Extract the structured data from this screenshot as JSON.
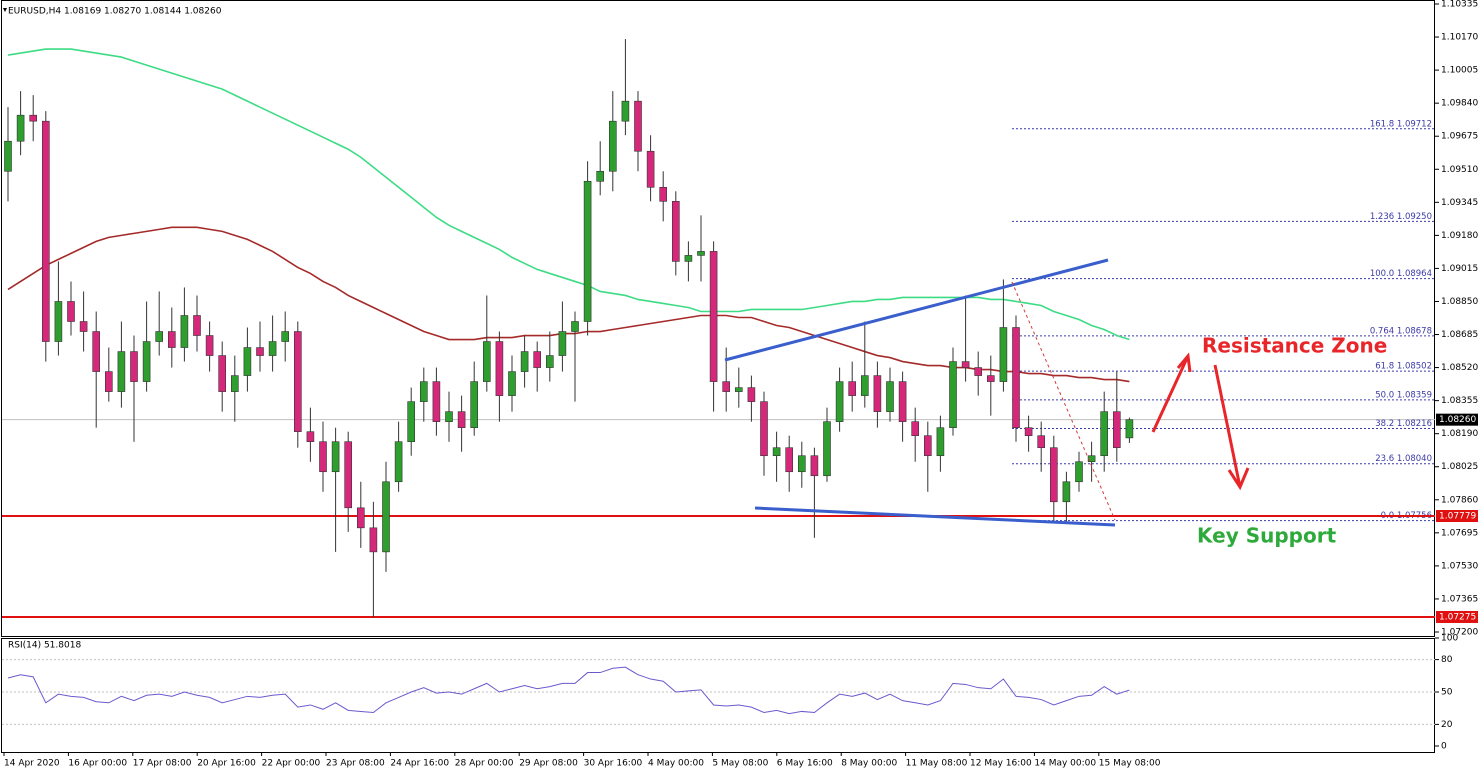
{
  "chart_data": {
    "type": "candlestick",
    "header": "EURUSD,H4  1.08169 1.08270 1.08144 1.08260",
    "bull_color": "#2e9e2e",
    "bear_color": "#d6287a",
    "ylim": [
      1.072,
      1.10335
    ],
    "yticks": [
      1.10335,
      {
        "value": 1.1017,
        "label": "1.10170"
      },
      1.10005,
      {
        "value": 1.0984,
        "label": "1.09840"
      },
      1.09675,
      {
        "value": 1.0951,
        "label": "1.09510"
      },
      1.09345,
      {
        "value": 1.0918,
        "label": "1.09180"
      },
      1.09015,
      {
        "value": 1.0885,
        "label": "1.08850"
      },
      1.08685,
      {
        "value": 1.0852,
        "label": "1.08520"
      },
      1.08355,
      {
        "value": 1.0819,
        "label": "1.08190"
      },
      1.08025,
      {
        "value": 1.0786,
        "label": "1.07860"
      },
      1.07695,
      {
        "value": 1.0753,
        "label": "1.07530"
      },
      1.07365,
      {
        "value": 1.072,
        "label": "1.07200"
      }
    ],
    "x_labels": [
      "14 Apr 2020",
      "16 Apr 00:00",
      "17 Apr 08:00",
      "20 Apr 16:00",
      "22 Apr 00:00",
      "23 Apr 08:00",
      "24 Apr 16:00",
      "28 Apr 00:00",
      "29 Apr 08:00",
      "30 Apr 16:00",
      "4 May 00:00",
      "5 May 08:00",
      "6 May 16:00",
      "8 May 00:00",
      "11 May 08:00",
      "12 May 16:00",
      "14 May 00:00",
      "15 May 08:00"
    ],
    "ohlc": [
      [
        1.095,
        1.0982,
        1.0935,
        1.0965
      ],
      [
        1.0965,
        1.099,
        1.0958,
        1.0978
      ],
      [
        1.0978,
        1.0988,
        1.0965,
        1.0975
      ],
      [
        1.0975,
        1.098,
        1.0855,
        1.0865
      ],
      [
        1.0865,
        1.0905,
        1.0858,
        1.0885
      ],
      [
        1.0885,
        1.0895,
        1.0868,
        1.0875
      ],
      [
        1.0875,
        1.089,
        1.086,
        1.087
      ],
      [
        1.087,
        1.088,
        1.0822,
        1.085
      ],
      [
        1.085,
        1.0862,
        1.0835,
        1.084
      ],
      [
        1.084,
        1.0875,
        1.0832,
        1.086
      ],
      [
        1.086,
        1.0868,
        1.0815,
        1.0845
      ],
      [
        1.0845,
        1.0885,
        1.084,
        1.0865
      ],
      [
        1.0865,
        1.089,
        1.0858,
        1.087
      ],
      [
        1.087,
        1.0882,
        1.0852,
        1.0862
      ],
      [
        1.0862,
        1.0892,
        1.0855,
        1.0878
      ],
      [
        1.0878,
        1.0888,
        1.086,
        1.0868
      ],
      [
        1.0868,
        1.0875,
        1.085,
        1.0858
      ],
      [
        1.0858,
        1.0865,
        1.083,
        1.084
      ],
      [
        1.084,
        1.0858,
        1.0825,
        1.0848
      ],
      [
        1.0848,
        1.0872,
        1.084,
        1.0862
      ],
      [
        1.0862,
        1.0875,
        1.085,
        1.0858
      ],
      [
        1.0858,
        1.0878,
        1.085,
        1.0865
      ],
      [
        1.0865,
        1.088,
        1.0855,
        1.087
      ],
      [
        1.087,
        1.0875,
        1.0812,
        1.082
      ],
      [
        1.082,
        1.0832,
        1.0805,
        1.0815
      ],
      [
        1.0815,
        1.0825,
        1.079,
        1.08
      ],
      [
        1.08,
        1.0822,
        1.076,
        1.0815
      ],
      [
        1.0815,
        1.082,
        1.077,
        1.0782
      ],
      [
        1.0782,
        1.0795,
        1.0762,
        1.0772
      ],
      [
        1.0772,
        1.0785,
        1.07275,
        1.076
      ],
      [
        1.076,
        1.0805,
        1.075,
        1.0795
      ],
      [
        1.0795,
        1.0825,
        1.079,
        1.0815
      ],
      [
        1.0815,
        1.0842,
        1.0808,
        1.0835
      ],
      [
        1.0835,
        1.0852,
        1.0825,
        1.0845
      ],
      [
        1.0845,
        1.0852,
        1.0818,
        1.0825
      ],
      [
        1.0825,
        1.084,
        1.0815,
        1.083
      ],
      [
        1.083,
        1.0838,
        1.081,
        1.0822
      ],
      [
        1.0822,
        1.0855,
        1.0818,
        1.0845
      ],
      [
        1.0845,
        1.0888,
        1.084,
        1.0865
      ],
      [
        1.0865,
        1.087,
        1.0825,
        1.0838
      ],
      [
        1.0838,
        1.0858,
        1.083,
        1.085
      ],
      [
        1.085,
        1.0868,
        1.0842,
        1.086
      ],
      [
        1.086,
        1.0865,
        1.084,
        1.0852
      ],
      [
        1.0852,
        1.087,
        1.0845,
        1.0858
      ],
      [
        1.0858,
        1.0885,
        1.085,
        1.087
      ],
      [
        1.087,
        1.088,
        1.0835,
        1.0875
      ],
      [
        1.0875,
        1.0955,
        1.0868,
        1.0945
      ],
      [
        1.0945,
        1.0965,
        1.0938,
        1.095
      ],
      [
        1.095,
        1.099,
        1.094,
        1.0975
      ],
      [
        1.0975,
        1.1016,
        1.0968,
        1.0985
      ],
      [
        1.0985,
        1.099,
        1.095,
        1.096
      ],
      [
        1.096,
        1.0968,
        1.0935,
        1.0942
      ],
      [
        1.0942,
        1.095,
        1.0925,
        1.0935
      ],
      [
        1.0935,
        1.094,
        1.0898,
        1.0905
      ],
      [
        1.0905,
        1.0915,
        1.0895,
        1.0908
      ],
      [
        1.0908,
        1.0928,
        1.0895,
        1.091
      ],
      [
        1.091,
        1.0915,
        1.083,
        1.0845
      ],
      [
        1.0845,
        1.0862,
        1.083,
        1.084
      ],
      [
        1.084,
        1.0852,
        1.0832,
        1.0842
      ],
      [
        1.0842,
        1.0848,
        1.0825,
        1.0835
      ],
      [
        1.0835,
        1.084,
        1.0798,
        1.0808
      ],
      [
        1.0808,
        1.082,
        1.0795,
        1.0812
      ],
      [
        1.0812,
        1.0818,
        1.079,
        1.08
      ],
      [
        1.08,
        1.0815,
        1.0792,
        1.0808
      ],
      [
        1.0808,
        1.0812,
        1.0767,
        1.0798
      ],
      [
        1.0798,
        1.0832,
        1.0795,
        1.0825
      ],
      [
        1.0825,
        1.0852,
        1.082,
        1.0845
      ],
      [
        1.0845,
        1.0855,
        1.083,
        1.0838
      ],
      [
        1.0838,
        1.0875,
        1.0832,
        1.0848
      ],
      [
        1.0848,
        1.0855,
        1.0822,
        1.083
      ],
      [
        1.083,
        1.0852,
        1.0825,
        1.0845
      ],
      [
        1.0845,
        1.085,
        1.0815,
        1.0825
      ],
      [
        1.0825,
        1.0832,
        1.0805,
        1.0818
      ],
      [
        1.0818,
        1.0825,
        1.079,
        1.0808
      ],
      [
        1.0808,
        1.0828,
        1.08,
        1.0822
      ],
      [
        1.0822,
        1.0862,
        1.0818,
        1.0855
      ],
      [
        1.0855,
        1.0888,
        1.0845,
        1.0852
      ],
      [
        1.0852,
        1.086,
        1.0838,
        1.0848
      ],
      [
        1.0848,
        1.0858,
        1.0828,
        1.0845
      ],
      [
        1.0845,
        1.0896,
        1.084,
        1.0872
      ],
      [
        1.0872,
        1.0878,
        1.0815,
        1.0822
      ],
      [
        1.0822,
        1.0828,
        1.081,
        1.0818
      ],
      [
        1.0818,
        1.0825,
        1.08,
        1.0812
      ],
      [
        1.0812,
        1.0818,
        1.0775,
        1.0785
      ],
      [
        1.0785,
        1.08,
        1.0775,
        1.0795
      ],
      [
        1.0795,
        1.081,
        1.079,
        1.0805
      ],
      [
        1.0805,
        1.0815,
        1.0795,
        1.0808
      ],
      [
        1.0808,
        1.084,
        1.08,
        1.083
      ],
      [
        1.083,
        1.085,
        1.0805,
        1.0812
      ],
      [
        1.08169,
        1.0827,
        1.08144,
        1.0826
      ]
    ],
    "moving_averages": [
      {
        "color": "#3ddc84",
        "values": [
          1.1008,
          1.1009,
          1.101,
          1.1011,
          1.1011,
          1.1011,
          1.101,
          1.1009,
          1.1008,
          1.1007,
          1.1005,
          1.1003,
          1.1001,
          1.0999,
          1.0997,
          1.0995,
          1.0993,
          1.0991,
          1.0988,
          1.0985,
          1.0982,
          1.0979,
          1.0976,
          1.0973,
          1.097,
          1.0967,
          1.0964,
          1.0961,
          1.0957,
          1.0952,
          1.0947,
          1.0942,
          1.0937,
          1.0932,
          1.0927,
          1.0923,
          1.092,
          1.0917,
          1.0914,
          1.0911,
          1.0907,
          1.0904,
          1.0901,
          1.0899,
          1.0897,
          1.0895,
          1.0893,
          1.089,
          1.0889,
          1.0888,
          1.0886,
          1.0885,
          1.0884,
          1.0883,
          1.0882,
          1.088,
          1.088,
          1.088,
          1.088,
          1.0881,
          1.0881,
          1.0881,
          1.0881,
          1.0881,
          1.0882,
          1.0883,
          1.0884,
          1.0885,
          1.0885,
          1.0886,
          1.0886,
          1.0887,
          1.0887,
          1.0887,
          1.0887,
          1.0887,
          1.0887,
          1.0887,
          1.0886,
          1.0886,
          1.0885,
          1.0884,
          1.0883,
          1.088,
          1.0878,
          1.0876,
          1.0873,
          1.0871,
          1.0868,
          1.0866
        ]
      },
      {
        "color": "#a52a2a",
        "values": [
          1.0891,
          1.0895,
          1.0899,
          1.0903,
          1.0906,
          1.0909,
          1.0912,
          1.0915,
          1.0917,
          1.0918,
          1.0919,
          1.092,
          1.0921,
          1.0922,
          1.0922,
          1.0922,
          1.0921,
          1.092,
          1.0918,
          1.0916,
          1.0913,
          1.091,
          1.0906,
          1.0902,
          1.0899,
          1.0895,
          1.0892,
          1.0888,
          1.0885,
          1.0882,
          1.0879,
          1.0876,
          1.0873,
          1.087,
          1.0868,
          1.0866,
          1.0866,
          1.0866,
          1.0867,
          1.0867,
          1.0867,
          1.0868,
          1.0868,
          1.0868,
          1.0869,
          1.0869,
          1.087,
          1.087,
          1.0871,
          1.0872,
          1.0873,
          1.0874,
          1.0875,
          1.0876,
          1.0877,
          1.0878,
          1.0878,
          1.0878,
          1.0877,
          1.0877,
          1.0875,
          1.0873,
          1.0872,
          1.087,
          1.0868,
          1.0866,
          1.0864,
          1.0862,
          1.086,
          1.0858,
          1.0857,
          1.0855,
          1.0854,
          1.0853,
          1.0853,
          1.0852,
          1.0852,
          1.0851,
          1.0851,
          1.085,
          1.085,
          1.0849,
          1.0849,
          1.0848,
          1.0848,
          1.0847,
          1.0847,
          1.0846,
          1.0846,
          1.0845
        ]
      }
    ],
    "current_price": {
      "value": 1.0826,
      "label": "1.08260"
    },
    "levels": [
      {
        "value": 1.07779,
        "label": "1.07779"
      },
      {
        "value": 1.07275,
        "label": "1.07275"
      }
    ],
    "fib_levels": [
      {
        "label": "161.8 1.09712",
        "price": 1.09712
      },
      {
        "label": "1.236 1.09250",
        "price": 1.0925
      },
      {
        "label": "100.0 1.08964",
        "price": 1.08964
      },
      {
        "label": "0.764 1.08678",
        "price": 1.08678
      },
      {
        "label": "61.8 1.08502",
        "price": 1.08502
      },
      {
        "label": "50.0 1.08359",
        "price": 1.08359
      },
      {
        "label": "38.2 1.08216",
        "price": 1.08216
      },
      {
        "label": "23.6 1.08040",
        "price": 1.0804
      },
      {
        "label": "0.0 1.07756",
        "price": 1.07756
      }
    ],
    "annotations": [
      "Resistance Zone",
      "Key Support"
    ],
    "rsi": {
      "label": "RSI(14) 51.8018",
      "color": "#6a5acd",
      "ylim": [
        0,
        100
      ],
      "yticks": [
        100,
        80,
        50,
        20,
        0
      ],
      "levels": [
        80,
        50,
        20
      ],
      "values": [
        63,
        66,
        64,
        40,
        48,
        46,
        45,
        41,
        40,
        46,
        42,
        47,
        48,
        46,
        50,
        47,
        45,
        40,
        43,
        46,
        45,
        47,
        48,
        36,
        38,
        34,
        40,
        33,
        32,
        31,
        40,
        45,
        50,
        54,
        49,
        50,
        48,
        53,
        58,
        50,
        53,
        56,
        53,
        55,
        58,
        58,
        68,
        68,
        72,
        73,
        66,
        62,
        60,
        50,
        51,
        52,
        38,
        37,
        38,
        36,
        31,
        33,
        30,
        32,
        31,
        40,
        48,
        46,
        49,
        43,
        48,
        42,
        40,
        38,
        42,
        58,
        57,
        54,
        53,
        62,
        46,
        45,
        43,
        38,
        42,
        46,
        47,
        55,
        48,
        51.8018
      ]
    }
  }
}
